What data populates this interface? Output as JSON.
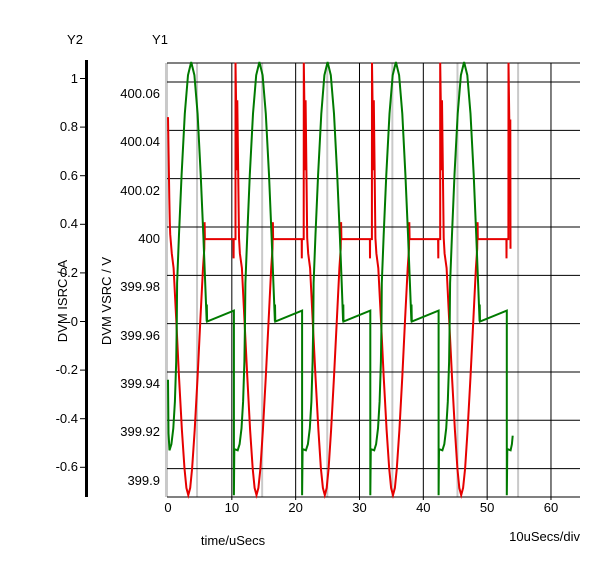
{
  "titles": {
    "y2_axis_name": "Y2",
    "y1_axis_name": "Y1",
    "y2_axis_label": "DVM ISRC / A",
    "y1_axis_label": "DVM VSRC / V",
    "x_axis_label": "time/uSecs",
    "x_scale_label": "10uSecs/div"
  },
  "colors": {
    "vsrc_trace": "#e60000",
    "isrc_trace": "#007a00",
    "grid": "#000000",
    "marker": "#c9c9c9",
    "background": "#ffffff"
  },
  "axes": {
    "y1": {
      "unit": "V",
      "ticks": [
        {
          "label": "400.06",
          "value": 400.06
        },
        {
          "label": "400.04",
          "value": 400.04
        },
        {
          "label": "400.02",
          "value": 400.02
        },
        {
          "label": "400",
          "value": 400
        },
        {
          "label": "399.98",
          "value": 399.98
        },
        {
          "label": "399.96",
          "value": 399.96
        },
        {
          "label": "399.94",
          "value": 399.94
        },
        {
          "label": "399.92",
          "value": 399.92
        },
        {
          "label": "399.9",
          "value": 399.9
        }
      ]
    },
    "y2": {
      "unit": "A",
      "ticks": [
        {
          "label": "1",
          "value": 1
        },
        {
          "label": "0.8",
          "value": 0.8
        },
        {
          "label": "0.6",
          "value": 0.6
        },
        {
          "label": "0.4",
          "value": 0.4
        },
        {
          "label": "0.2",
          "value": 0.2
        },
        {
          "label": "-0",
          "value": 0
        },
        {
          "label": "-0.2",
          "value": -0.2
        },
        {
          "label": "-0.4",
          "value": -0.4
        },
        {
          "label": "-0.6",
          "value": -0.6
        }
      ]
    },
    "x": {
      "unit": "uSecs",
      "ticks": [
        {
          "label": "0",
          "value": 0
        },
        {
          "label": "10",
          "value": 10
        },
        {
          "label": "20",
          "value": 20
        },
        {
          "label": "30",
          "value": 30
        },
        {
          "label": "40",
          "value": 40
        },
        {
          "label": "50",
          "value": 50
        },
        {
          "label": "60",
          "value": 60
        }
      ]
    }
  },
  "chart_data": {
    "type": "line",
    "x_unit": "uSecs",
    "x_range": [
      0,
      60
    ],
    "y1_range": [
      399.889,
      400.068
    ],
    "y2_range": [
      -0.72,
      1.07
    ],
    "grid": true,
    "period_us": 10.69,
    "events_us": [
      0.03,
      10.72,
      21.41,
      32.1,
      42.79,
      53.48
    ],
    "cursor_markers_us": [
      -0.24,
      4.55,
      14.75,
      24.95,
      35.15,
      45.35,
      54.85
    ],
    "series": [
      {
        "name": "DVM VSRC / V",
        "axis": "y1",
        "color_key": "vsrc_trace",
        "flat_level": 399.995,
        "spike_top": 400.068,
        "dip_min": 399.889,
        "start": [
          [
            0,
            400.0455
          ],
          [
            0.1,
            400.03
          ],
          [
            0.2,
            400.012
          ],
          [
            0.28,
            400.002
          ],
          [
            0.35,
            399.997
          ],
          [
            0.6,
            399.989
          ],
          [
            0.88,
            399.983
          ],
          [
            1.28,
            399.962
          ],
          [
            1.73,
            399.938
          ],
          [
            2.18,
            399.916
          ],
          [
            2.58,
            399.9
          ],
          [
            2.88,
            399.892
          ],
          [
            3.18,
            399.889
          ],
          [
            3.48,
            399.892
          ],
          [
            3.78,
            399.9
          ],
          [
            4.18,
            399.916
          ],
          [
            4.63,
            399.938
          ],
          [
            5.08,
            399.962
          ],
          [
            5.48,
            399.983
          ],
          [
            5.68,
            399.991
          ],
          [
            5.74,
            400.002
          ],
          [
            5.78,
            399.995
          ]
        ],
        "template": [
          [
            -0.47,
            399.995
          ],
          [
            -0.45,
            399.987
          ],
          [
            -0.43,
            399.995
          ],
          [
            -0.15,
            399.995
          ],
          [
            -0.14,
            400.068
          ],
          [
            0.1,
            400.0235
          ],
          [
            0.14,
            400.0525
          ],
          [
            0.4,
            399.9955
          ],
          [
            0.55,
            399.989
          ],
          [
            0.85,
            399.983
          ],
          [
            1.25,
            399.962
          ],
          [
            1.7,
            399.938
          ],
          [
            2.15,
            399.916
          ],
          [
            2.55,
            399.9
          ],
          [
            2.85,
            399.892
          ],
          [
            3.15,
            399.889
          ],
          [
            3.45,
            399.892
          ],
          [
            3.75,
            399.9
          ],
          [
            4.15,
            399.916
          ],
          [
            4.6,
            399.938
          ],
          [
            5.05,
            399.962
          ],
          [
            5.45,
            399.983
          ],
          [
            5.65,
            399.991
          ],
          [
            5.71,
            400.002
          ],
          [
            5.75,
            399.995
          ]
        ],
        "last_cut": -0.14,
        "end": [
          [
            53.6,
            400.02
          ],
          [
            53.63,
            400.0445
          ],
          [
            53.66,
            399.991
          ]
        ]
      },
      {
        "name": "DVM ISRC / A",
        "axis": "y2",
        "color_key": "isrc_trace",
        "flat_level": 0,
        "pulse_peak": 1.068,
        "notch_min": -0.715,
        "start": [
          [
            0,
            -0.24
          ],
          [
            0.08,
            -0.46
          ],
          [
            0.23,
            -0.53
          ],
          [
            0.53,
            -0.505
          ],
          [
            0.83,
            -0.44
          ],
          [
            1.08,
            -0.33
          ],
          [
            1.28,
            -0.165
          ],
          [
            1.38,
            0
          ],
          [
            1.43,
            0.158
          ],
          [
            1.73,
            0.359
          ],
          [
            2.13,
            0.604
          ],
          [
            2.63,
            0.855
          ],
          [
            3.13,
            1.014
          ],
          [
            3.63,
            1.068
          ],
          [
            4.13,
            1.014
          ],
          [
            4.63,
            0.855
          ],
          [
            5.13,
            0.604
          ],
          [
            5.53,
            0.359
          ],
          [
            5.83,
            0.158
          ],
          [
            6.06,
            0
          ],
          [
            6.08,
            0.07
          ],
          [
            6.12,
            0
          ]
        ],
        "template": [
          [
            -0.4,
            0.045
          ],
          [
            -0.4,
            -0.715
          ],
          [
            -0.33,
            -0.525
          ],
          [
            0.2,
            -0.53
          ],
          [
            0.5,
            -0.505
          ],
          [
            0.8,
            -0.44
          ],
          [
            1.05,
            -0.33
          ],
          [
            1.25,
            -0.165
          ],
          [
            1.35,
            0
          ],
          [
            1.4,
            0.158
          ],
          [
            1.7,
            0.359
          ],
          [
            2.1,
            0.604
          ],
          [
            2.6,
            0.855
          ],
          [
            3.1,
            1.014
          ],
          [
            3.6,
            1.068
          ],
          [
            4.1,
            1.014
          ],
          [
            4.6,
            0.855
          ],
          [
            5.1,
            0.604
          ],
          [
            5.5,
            0.359
          ],
          [
            5.8,
            0.158
          ],
          [
            6.03,
            0
          ],
          [
            6.05,
            0.07
          ],
          [
            6.09,
            0
          ]
        ],
        "last_cut": -0.33,
        "end": [
          [
            53.68,
            -0.53
          ],
          [
            53.88,
            -0.505
          ],
          [
            54.0,
            -0.47
          ]
        ]
      }
    ]
  }
}
